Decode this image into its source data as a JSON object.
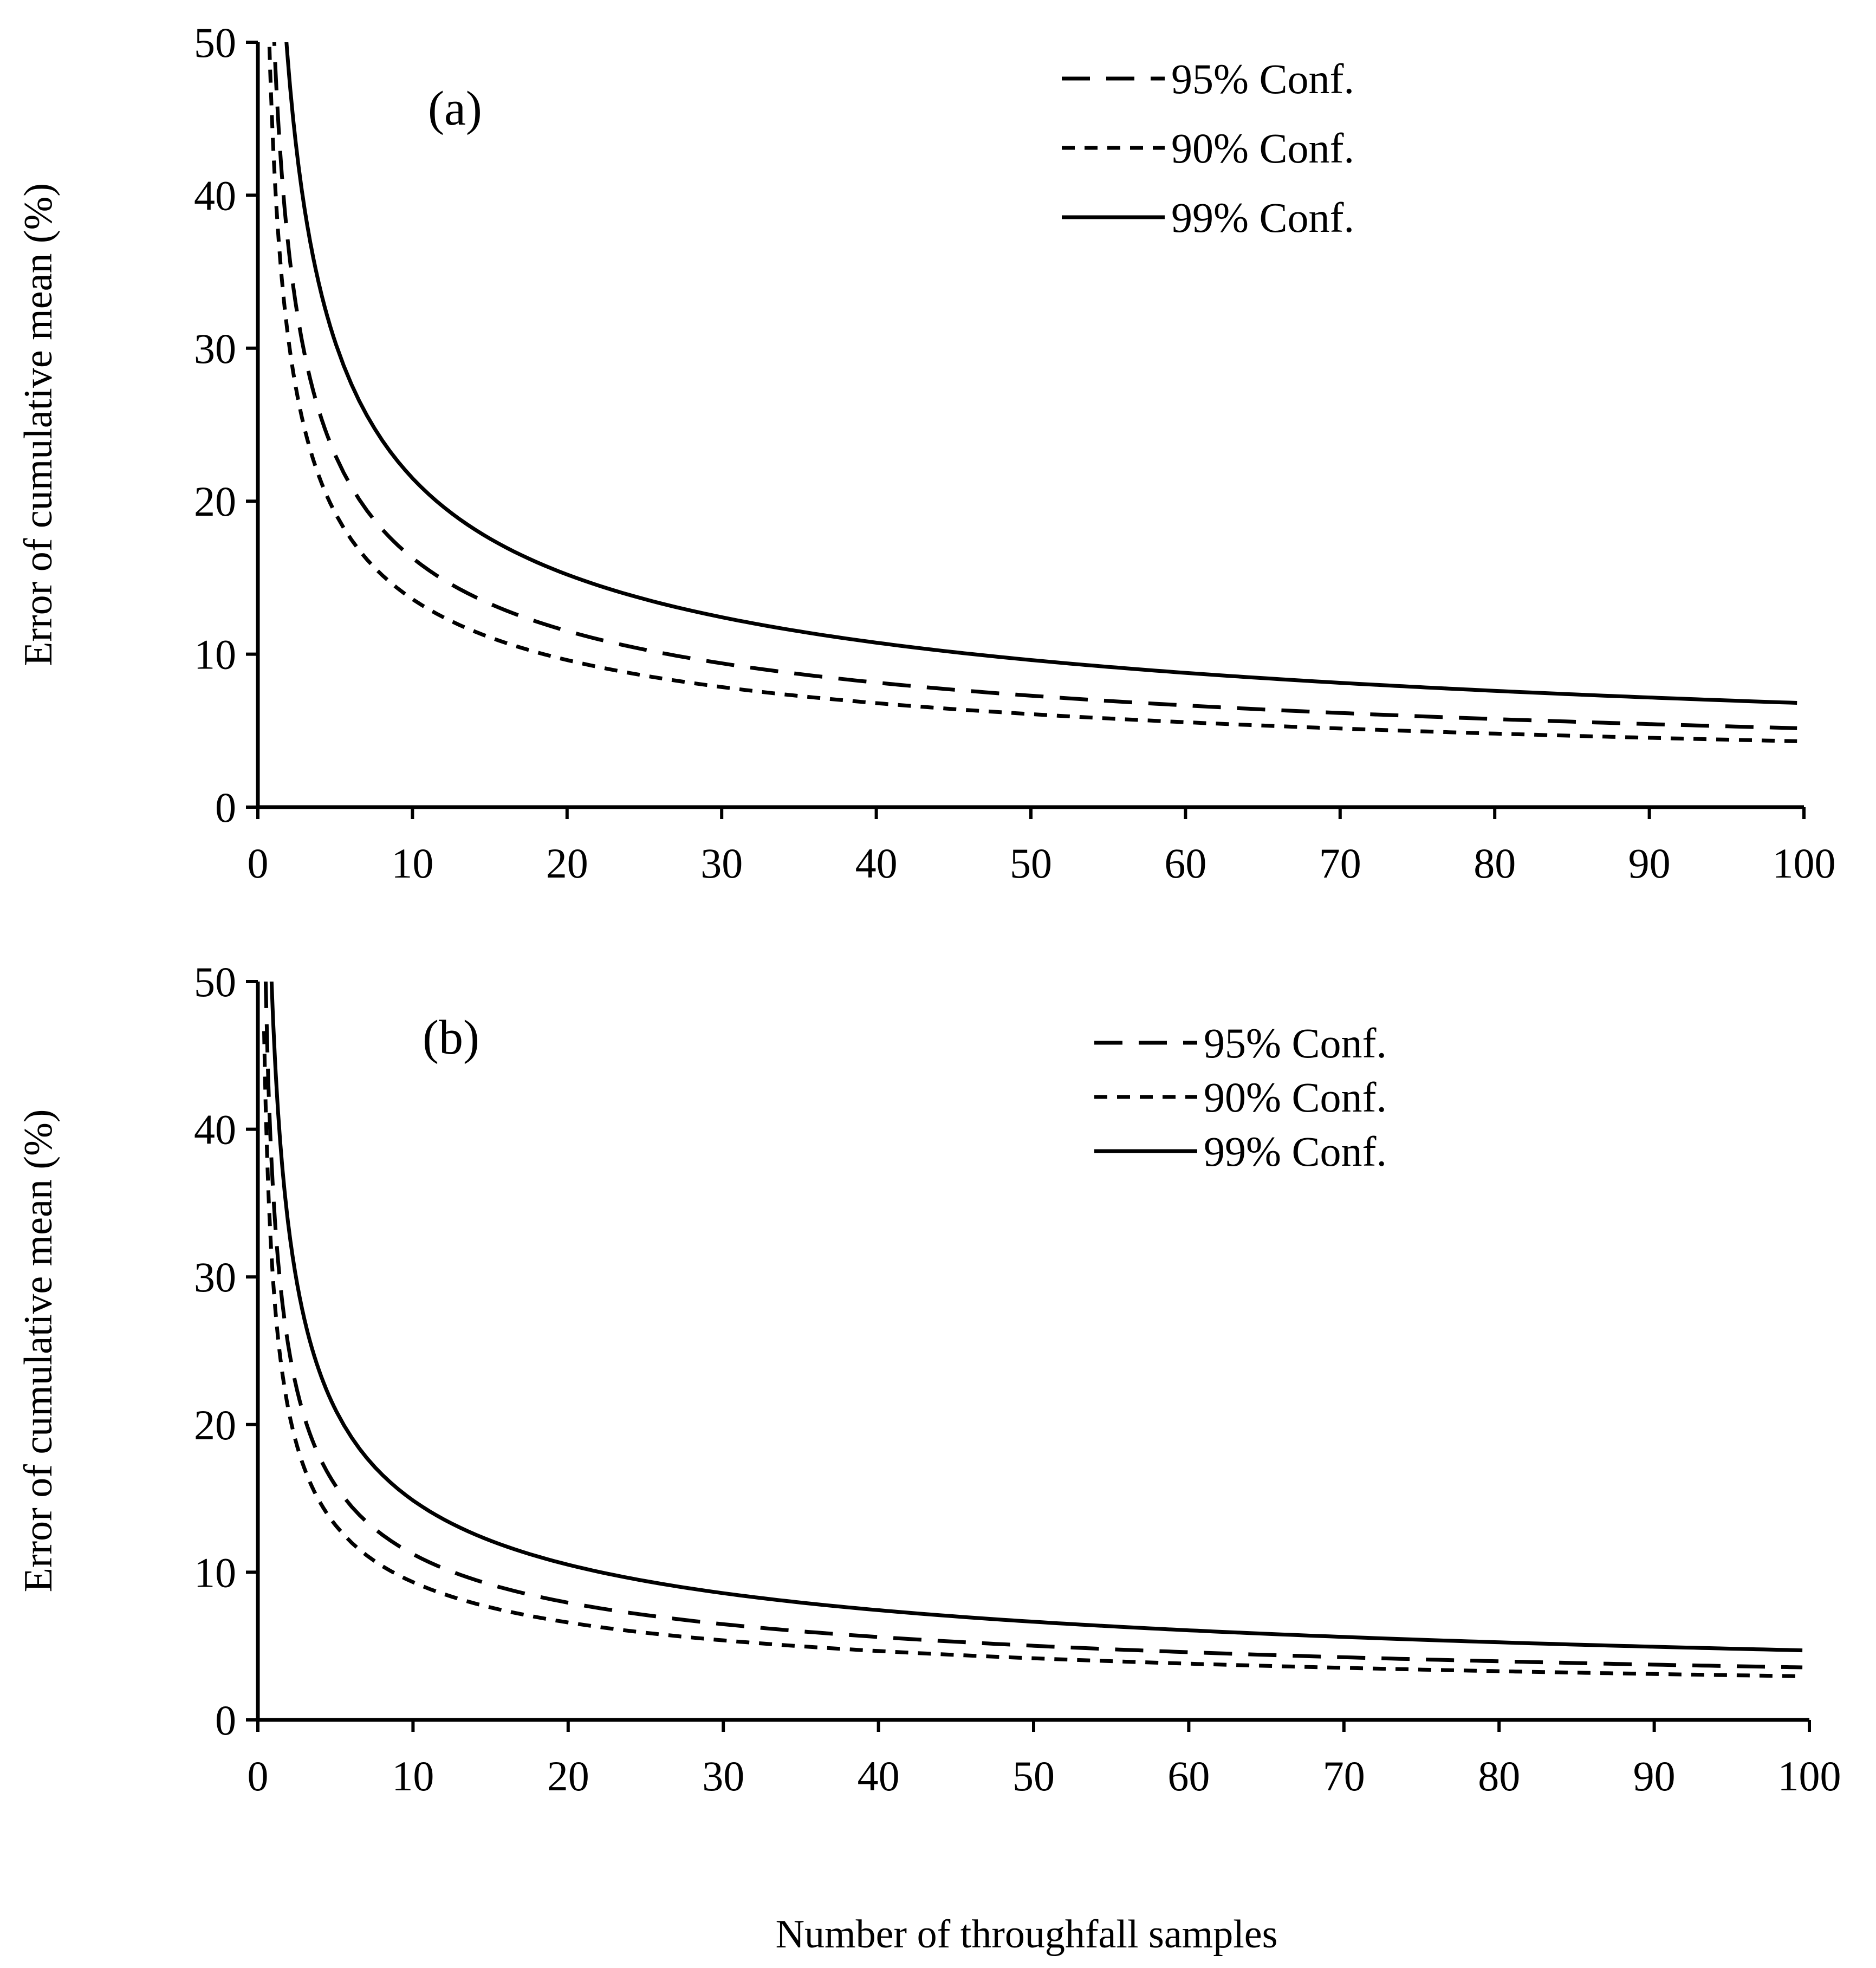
{
  "chart_data": [
    {
      "type": "line",
      "panel_label": "(a)",
      "ylabel": "Error of cumulative mean (%)",
      "xlim": [
        0,
        100
      ],
      "ylim": [
        0,
        50
      ],
      "xticks": [
        0,
        10,
        20,
        30,
        40,
        50,
        60,
        70,
        80,
        90,
        100
      ],
      "yticks": [
        0,
        10,
        20,
        30,
        40,
        50
      ],
      "grid": false,
      "legend_position": "top-right",
      "series": [
        {
          "name": "95% Conf.",
          "style": "long-dash",
          "coef": 51.5
        },
        {
          "name": "90% Conf.",
          "style": "short-dash",
          "coef": 43.0
        },
        {
          "name": "99% Conf.",
          "style": "solid",
          "coef": 68.0
        }
      ],
      "x": [
        1,
        2,
        3,
        5,
        7,
        10,
        15,
        20,
        30,
        40,
        50,
        60,
        70,
        80,
        90,
        100
      ]
    },
    {
      "type": "line",
      "panel_label": "(b)",
      "ylabel": "Error of cumulative mean (%)",
      "xlim": [
        0,
        100
      ],
      "ylim": [
        0,
        50
      ],
      "xticks": [
        0,
        10,
        20,
        30,
        40,
        50,
        60,
        70,
        80,
        90,
        100
      ],
      "yticks": [
        0,
        10,
        20,
        30,
        40,
        50
      ],
      "grid": false,
      "legend_position": "top-right",
      "series": [
        {
          "name": "95% Conf.",
          "style": "long-dash",
          "coef": 35.5
        },
        {
          "name": "90% Conf.",
          "style": "short-dash",
          "coef": 29.5
        },
        {
          "name": "99% Conf.",
          "style": "solid",
          "coef": 47.0
        }
      ],
      "x": [
        1,
        2,
        3,
        5,
        7,
        10,
        15,
        20,
        30,
        40,
        50,
        60,
        70,
        80,
        90,
        100
      ]
    }
  ],
  "shared_xlabel": "Number of throughfall samples"
}
